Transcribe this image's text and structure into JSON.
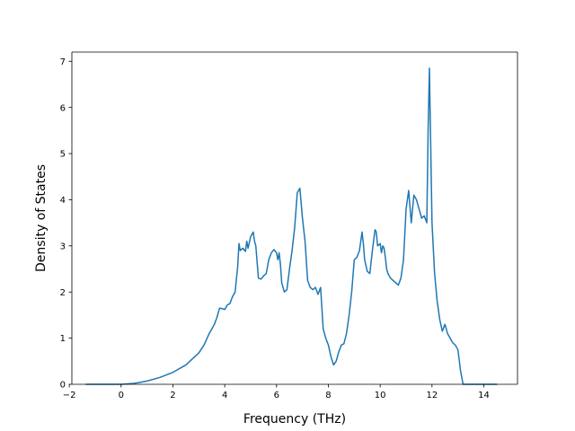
{
  "chart_data": {
    "type": "line",
    "title": "",
    "xlabel": "Frequency (THz)",
    "ylabel": "Density of States",
    "xlim": [
      -1.9,
      15.3
    ],
    "ylim": [
      0,
      7.2
    ],
    "xticks": [
      -2,
      0,
      2,
      4,
      6,
      8,
      10,
      12,
      14
    ],
    "yticks": [
      0,
      1,
      2,
      3,
      4,
      5,
      6,
      7
    ],
    "xtick_labels": [
      "−2",
      "0",
      "2",
      "4",
      "6",
      "8",
      "10",
      "12",
      "14"
    ],
    "ytick_labels": [
      "0",
      "1",
      "2",
      "3",
      "4",
      "5",
      "6",
      "7"
    ],
    "grid": false,
    "legend": "none",
    "series": [
      {
        "color": "#1f77b4",
        "x": [
          -1.35,
          -1.0,
          -0.5,
          0.0,
          0.5,
          1.0,
          1.5,
          2.0,
          2.5,
          3.0,
          3.2,
          3.4,
          3.5,
          3.6,
          3.7,
          3.8,
          3.9,
          4.0,
          4.1,
          4.2,
          4.3,
          4.4,
          4.5,
          4.55,
          4.6,
          4.7,
          4.8,
          4.85,
          4.9,
          5.0,
          5.1,
          5.15,
          5.2,
          5.3,
          5.4,
          5.5,
          5.6,
          5.7,
          5.8,
          5.9,
          6.0,
          6.05,
          6.1,
          6.15,
          6.2,
          6.3,
          6.4,
          6.5,
          6.6,
          6.7,
          6.8,
          6.9,
          7.0,
          7.1,
          7.2,
          7.3,
          7.4,
          7.5,
          7.6,
          7.7,
          7.8,
          7.9,
          8.0,
          8.1,
          8.2,
          8.3,
          8.4,
          8.5,
          8.6,
          8.7,
          8.8,
          8.9,
          9.0,
          9.1,
          9.2,
          9.3,
          9.35,
          9.4,
          9.5,
          9.6,
          9.7,
          9.8,
          9.85,
          9.9,
          10.0,
          10.05,
          10.1,
          10.15,
          10.2,
          10.25,
          10.3,
          10.4,
          10.5,
          10.6,
          10.7,
          10.8,
          10.9,
          11.0,
          11.1,
          11.2,
          11.3,
          11.35,
          11.4,
          11.5,
          11.6,
          11.7,
          11.8,
          11.85,
          11.9,
          12.0,
          12.1,
          12.2,
          12.3,
          12.4,
          12.5,
          12.6,
          12.7,
          12.8,
          12.9,
          13.0,
          13.1,
          13.2,
          13.3,
          13.5,
          14.0,
          14.5
        ],
        "y": [
          0.0,
          0.0,
          0.0,
          0.0,
          0.02,
          0.07,
          0.15,
          0.26,
          0.42,
          0.68,
          0.85,
          1.1,
          1.2,
          1.3,
          1.45,
          1.65,
          1.64,
          1.62,
          1.72,
          1.75,
          1.9,
          2.0,
          2.55,
          3.05,
          2.9,
          2.95,
          2.88,
          3.1,
          2.95,
          3.2,
          3.3,
          3.1,
          3.0,
          2.3,
          2.28,
          2.35,
          2.4,
          2.7,
          2.85,
          2.92,
          2.85,
          2.7,
          2.85,
          2.6,
          2.2,
          2.0,
          2.05,
          2.5,
          2.9,
          3.4,
          4.15,
          4.25,
          3.6,
          3.1,
          2.25,
          2.1,
          2.05,
          2.1,
          1.95,
          2.1,
          1.2,
          1.0,
          0.85,
          0.6,
          0.42,
          0.5,
          0.7,
          0.85,
          0.88,
          1.1,
          1.5,
          2.0,
          2.7,
          2.75,
          2.9,
          3.3,
          3.05,
          2.7,
          2.45,
          2.4,
          2.9,
          3.35,
          3.3,
          3.0,
          3.05,
          2.85,
          3.0,
          2.95,
          2.75,
          2.5,
          2.4,
          2.3,
          2.25,
          2.2,
          2.15,
          2.3,
          2.7,
          3.8,
          4.2,
          3.5,
          4.1,
          4.05,
          4.0,
          3.8,
          3.6,
          3.65,
          3.5,
          5.5,
          6.85,
          3.5,
          2.4,
          1.8,
          1.4,
          1.15,
          1.3,
          1.1,
          1.0,
          0.9,
          0.85,
          0.75,
          0.3,
          0.0,
          0.0,
          0.0,
          0.0,
          0.0
        ]
      }
    ]
  }
}
